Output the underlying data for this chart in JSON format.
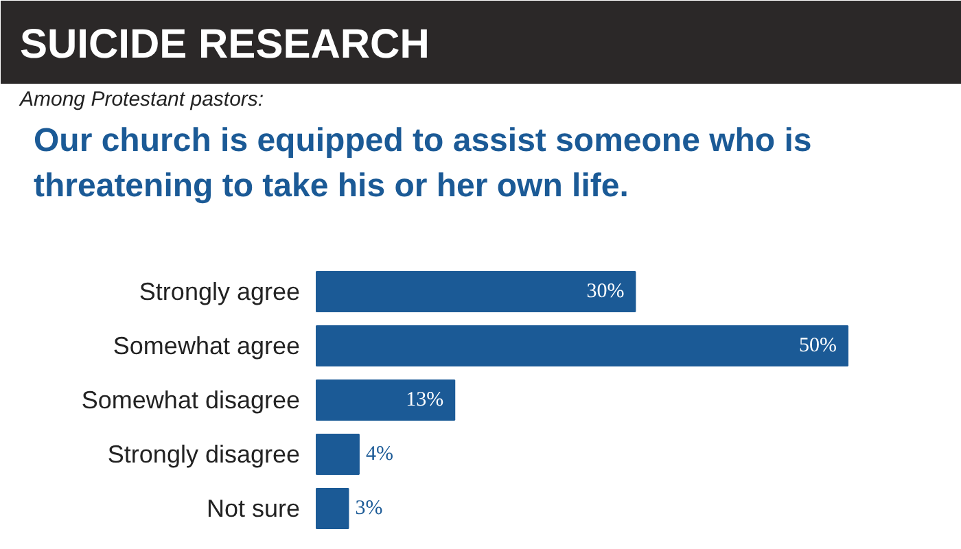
{
  "chart_data": {
    "type": "bar",
    "orientation": "horizontal",
    "title": "SUICIDE RESEARCH",
    "subtitle": "Among Protestant pastors:",
    "annotations": [
      "Our church is equipped to assist someone who is threatening to take his or her own life."
    ],
    "categories": [
      "Strongly agree",
      "Somewhat agree",
      "Somewhat disagree",
      "Strongly disagree",
      "Not sure"
    ],
    "values": [
      30,
      50,
      13,
      4,
      3
    ],
    "color": "#1b5a96",
    "data_labels": true,
    "value_labels": [
      "30%",
      "50%",
      "13%",
      "4%",
      "3%"
    ]
  }
}
